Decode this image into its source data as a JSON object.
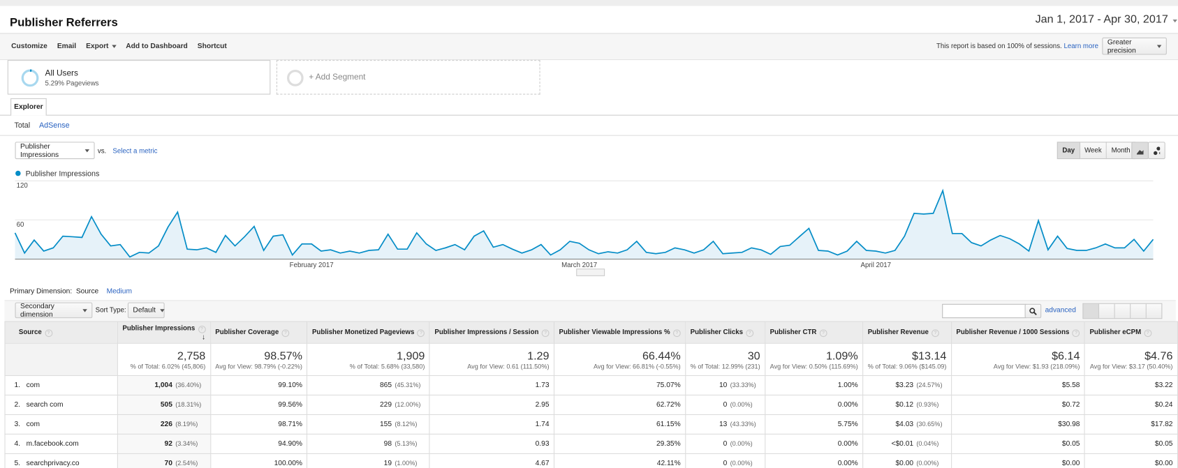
{
  "header": {
    "title": "Publisher Referrers",
    "date_range": "Jan 1, 2017 - Apr 30, 2017"
  },
  "toolbar": {
    "items": [
      "Customize",
      "Email",
      "Export",
      "Add to Dashboard",
      "Shortcut"
    ],
    "sampling_note": "This report is based on 100% of sessions.",
    "learn_more": "Learn more",
    "precision": "Greater precision"
  },
  "segments": {
    "active": {
      "name": "All Users",
      "detail": "5.29% Pageviews"
    },
    "add": "+ Add Segment"
  },
  "tabs": {
    "main": "Explorer",
    "sub": [
      "Total",
      "AdSense"
    ]
  },
  "chart_controls": {
    "metric": "Publisher Impressions",
    "vs": "vs.",
    "select": "Select a metric",
    "periods": [
      "Day",
      "Week",
      "Month"
    ]
  },
  "chart": {
    "type": "line",
    "series": [
      {
        "name": "Publisher Impressions",
        "color": "#058dc7",
        "values": [
          40,
          9,
          29,
          12,
          17,
          35,
          34,
          33,
          65,
          38,
          20,
          22,
          3,
          10,
          9,
          20,
          49,
          72,
          15,
          14,
          17,
          10,
          36,
          20,
          34,
          50,
          13,
          35,
          37,
          6,
          23,
          23,
          12,
          14,
          9,
          12,
          9,
          13,
          14,
          38,
          15,
          15,
          40,
          23,
          13,
          17,
          22,
          14,
          35,
          43,
          18,
          22,
          15,
          9,
          14,
          22,
          6,
          14,
          27,
          24,
          14,
          8,
          11,
          9,
          14,
          27,
          10,
          8,
          10,
          17,
          14,
          9,
          14,
          27,
          8,
          9,
          10,
          17,
          14,
          7,
          19,
          21,
          34,
          47,
          13,
          12,
          6,
          12,
          27,
          13,
          12,
          9,
          13,
          35,
          70,
          69,
          70,
          105,
          39,
          39,
          25,
          20,
          29,
          36,
          31,
          23,
          12,
          59,
          14,
          35,
          16,
          13,
          13,
          17,
          23,
          17,
          17,
          30,
          12,
          30
        ]
      }
    ],
    "categories": [
      null,
      null,
      null,
      null,
      null,
      null,
      null,
      null,
      null,
      null,
      null,
      null,
      null,
      null,
      null,
      null,
      null,
      null,
      null,
      null,
      null,
      null,
      null,
      null,
      null,
      null,
      null,
      null,
      null,
      null,
      null,
      "February 2017",
      null,
      null,
      null,
      null,
      null,
      null,
      null,
      null,
      null,
      null,
      null,
      null,
      null,
      null,
      null,
      null,
      null,
      null,
      null,
      null,
      null,
      null,
      null,
      null,
      null,
      null,
      null,
      "March 2017",
      null,
      null,
      null,
      null,
      null,
      null,
      null,
      null,
      null,
      null,
      null,
      null,
      null,
      null,
      null,
      null,
      null,
      null,
      null,
      null,
      null,
      null,
      null,
      null,
      null,
      null,
      null,
      null,
      null,
      null,
      "April 2017",
      null,
      null,
      null,
      null,
      null,
      null,
      null,
      null,
      null,
      null,
      null,
      null,
      null,
      null,
      null,
      null,
      null,
      null,
      null,
      null,
      null,
      null,
      null,
      null,
      null,
      null,
      null,
      null,
      null
    ],
    "ylim": [
      0,
      120
    ],
    "yticks": [
      60,
      120
    ],
    "grid": true
  },
  "primary_dimension": {
    "label": "Primary Dimension:",
    "options": [
      "Source",
      "Medium"
    ]
  },
  "table_controls": {
    "secondary": "Secondary dimension",
    "sort_label": "Sort Type:",
    "sort": "Default",
    "advanced": "advanced"
  },
  "table": {
    "columns": [
      "Source",
      "Publisher Impressions",
      "Publisher Coverage",
      "Publisher Monetized Pageviews",
      "Publisher Impressions / Session",
      "Publisher Viewable Impressions %",
      "Publisher Clicks",
      "Publisher CTR",
      "Publisher Revenue",
      "Publisher Revenue / 1000 Sessions",
      "Publisher eCPM"
    ],
    "totals": [
      {
        "value": "2,758",
        "note": "% of Total: 6.02% (45,806)"
      },
      {
        "value": "98.57%",
        "note": "Avg for View: 98.79% (-0.22%)"
      },
      {
        "value": "1,909",
        "note": "% of Total: 5.68% (33,580)"
      },
      {
        "value": "1.29",
        "note": "Avg for View: 0.61 (111.50%)"
      },
      {
        "value": "66.44%",
        "note": "Avg for View: 66.81% (-0.55%)"
      },
      {
        "value": "30",
        "note": "% of Total: 12.99% (231)"
      },
      {
        "value": "1.09%",
        "note": "Avg for View: 0.50% (115.69%)"
      },
      {
        "value": "$13.14",
        "note": "% of Total: 9.06% ($145.09)"
      },
      {
        "value": "$6.14",
        "note": "Avg for View: $1.93 (218.09%)"
      },
      {
        "value": "$4.76",
        "note": "Avg for View: $3.17 (50.40%)"
      }
    ],
    "rows": [
      {
        "index": "1.",
        "source": "com",
        "cells": [
          {
            "v": "1,004",
            "p": "(36.40%)"
          },
          {
            "v": "99.10%"
          },
          {
            "v": "865",
            "p": "(45.31%)"
          },
          {
            "v": "1.73"
          },
          {
            "v": "75.07%"
          },
          {
            "v": "10",
            "p": "(33.33%)"
          },
          {
            "v": "1.00%"
          },
          {
            "v": "$3.23",
            "p": "(24.57%)"
          },
          {
            "v": "$5.58"
          },
          {
            "v": "$3.22"
          }
        ]
      },
      {
        "index": "2.",
        "source": "search com",
        "cells": [
          {
            "v": "505",
            "p": "(18.31%)"
          },
          {
            "v": "99.56%"
          },
          {
            "v": "229",
            "p": "(12.00%)"
          },
          {
            "v": "2.95"
          },
          {
            "v": "62.72%"
          },
          {
            "v": "0",
            "p": "(0.00%)"
          },
          {
            "v": "0.00%"
          },
          {
            "v": "$0.12",
            "p": "(0.93%)"
          },
          {
            "v": "$0.72"
          },
          {
            "v": "$0.24"
          }
        ]
      },
      {
        "index": "3.",
        "source": "com",
        "cells": [
          {
            "v": "226",
            "p": "(8.19%)"
          },
          {
            "v": "98.71%"
          },
          {
            "v": "155",
            "p": "(8.12%)"
          },
          {
            "v": "1.74"
          },
          {
            "v": "61.15%"
          },
          {
            "v": "13",
            "p": "(43.33%)"
          },
          {
            "v": "5.75%"
          },
          {
            "v": "$4.03",
            "p": "(30.65%)"
          },
          {
            "v": "$30.98"
          },
          {
            "v": "$17.82"
          }
        ]
      },
      {
        "index": "4.",
        "source": "m.facebook.com",
        "cells": [
          {
            "v": "92",
            "p": "(3.34%)"
          },
          {
            "v": "94.90%"
          },
          {
            "v": "98",
            "p": "(5.13%)"
          },
          {
            "v": "0.93"
          },
          {
            "v": "29.35%"
          },
          {
            "v": "0",
            "p": "(0.00%)"
          },
          {
            "v": "0.00%"
          },
          {
            "v": "<$0.01",
            "p": "(0.04%)"
          },
          {
            "v": "$0.05"
          },
          {
            "v": "$0.05"
          }
        ]
      },
      {
        "index": "5.",
        "source": "searchprivacy.co",
        "cells": [
          {
            "v": "70",
            "p": "(2.54%)"
          },
          {
            "v": "100.00%"
          },
          {
            "v": "19",
            "p": "(1.00%)"
          },
          {
            "v": "4.67"
          },
          {
            "v": "42.11%"
          },
          {
            "v": "0",
            "p": "(0.00%)"
          },
          {
            "v": "0.00%"
          },
          {
            "v": "$0.00",
            "p": "(0.00%)"
          },
          {
            "v": "$0.00"
          },
          {
            "v": "$0.00"
          }
        ]
      }
    ]
  }
}
